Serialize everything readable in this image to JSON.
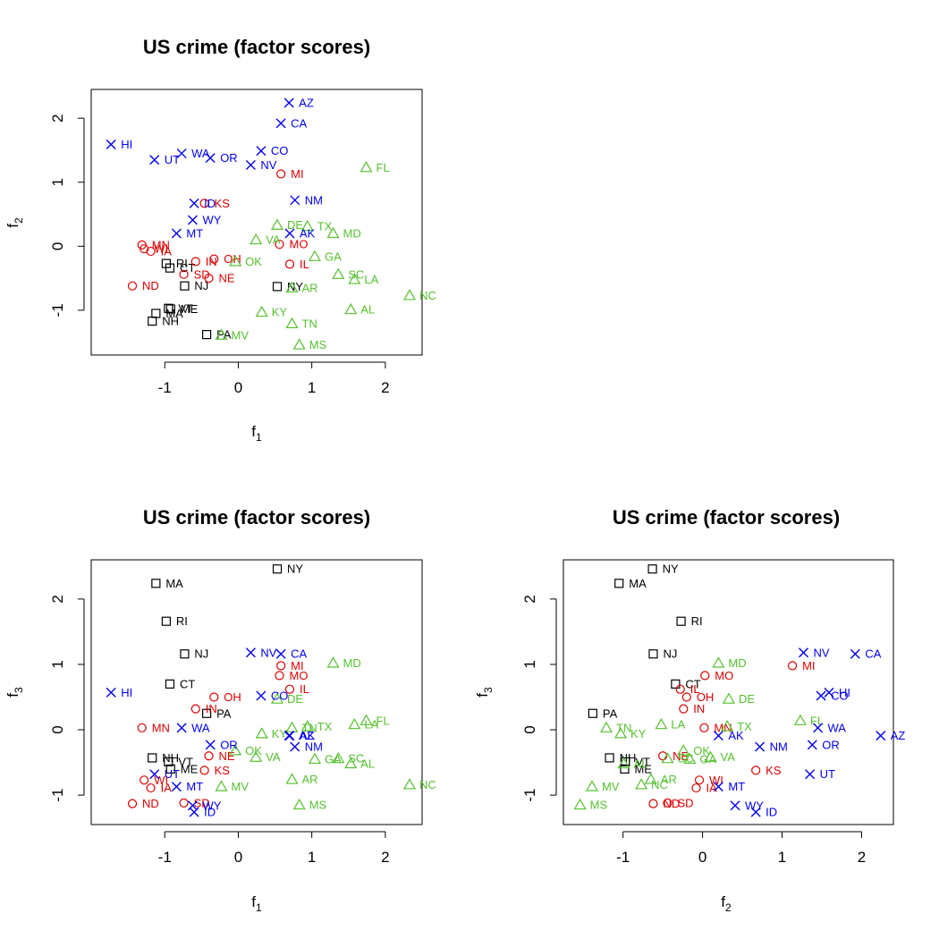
{
  "chart_data": [
    {
      "type": "scatter",
      "title": "US crime (factor scores)",
      "xlabel": "f",
      "xlabel_sub": "1",
      "ylabel": "f",
      "ylabel_sub": "2",
      "xfield": "f1",
      "yfield": "f2",
      "xlim": [
        -2.0,
        2.5
      ],
      "ylim": [
        -1.7,
        2.45
      ],
      "xticks": [
        -1,
        0,
        1,
        2
      ],
      "yticks": [
        -1,
        0,
        1,
        2
      ],
      "grid": false,
      "legend": "none"
    },
    {
      "type": "scatter",
      "title": "US crime (factor scores)",
      "xlabel": "f",
      "xlabel_sub": "1",
      "ylabel": "f",
      "ylabel_sub": "3",
      "xfield": "f1",
      "yfield": "f3",
      "xlim": [
        -2.0,
        2.5
      ],
      "ylim": [
        -1.45,
        2.6
      ],
      "xticks": [
        -1,
        0,
        1,
        2
      ],
      "yticks": [
        -1,
        0,
        1,
        2
      ],
      "grid": false,
      "legend": "none"
    },
    {
      "type": "scatter",
      "title": "US crime (factor scores)",
      "xlabel": "f",
      "xlabel_sub": "2",
      "ylabel": "f",
      "ylabel_sub": "3",
      "xfield": "f2",
      "yfield": "f3",
      "xlim": [
        -1.75,
        2.4
      ],
      "ylim": [
        -1.45,
        2.6
      ],
      "xticks": [
        -1,
        0,
        1,
        2
      ],
      "yticks": [
        -1,
        0,
        1,
        2
      ],
      "grid": false,
      "legend": "none"
    }
  ],
  "groups": [
    {
      "symbol": "square",
      "color": "#000000"
    },
    {
      "symbol": "circle",
      "color": "#dd0000"
    },
    {
      "symbol": "triangle",
      "color": "#55c12e"
    },
    {
      "symbol": "cross",
      "color": "#0000ee"
    }
  ],
  "states": [
    {
      "label": "CT",
      "group": 0,
      "f1": -0.93,
      "f2": -0.34,
      "f3": 0.7
    },
    {
      "label": "MA",
      "group": 0,
      "f1": -1.12,
      "f2": -1.05,
      "f3": 2.24
    },
    {
      "label": "ME",
      "group": 0,
      "f1": -0.92,
      "f2": -0.98,
      "f3": -0.6
    },
    {
      "label": "NH",
      "group": 0,
      "f1": -1.17,
      "f2": -1.17,
      "f3": -0.43
    },
    {
      "label": "NJ",
      "group": 0,
      "f1": -0.73,
      "f2": -0.62,
      "f3": 1.16
    },
    {
      "label": "NY",
      "group": 0,
      "f1": 0.53,
      "f2": -0.63,
      "f3": 2.46
    },
    {
      "label": "PA",
      "group": 0,
      "f1": -0.43,
      "f2": -1.38,
      "f3": 0.25
    },
    {
      "label": "RI",
      "group": 0,
      "f1": -0.98,
      "f2": -0.27,
      "f3": 1.66
    },
    {
      "label": "VT",
      "group": 0,
      "f1": -0.95,
      "f2": -0.97,
      "f3": -0.49
    },
    {
      "label": "IA",
      "group": 1,
      "f1": -1.19,
      "f2": -0.08,
      "f3": -0.89
    },
    {
      "label": "IL",
      "group": 1,
      "f1": 0.7,
      "f2": -0.28,
      "f3": 0.62
    },
    {
      "label": "IN",
      "group": 1,
      "f1": -0.58,
      "f2": -0.24,
      "f3": 0.32
    },
    {
      "label": "KS",
      "group": 1,
      "f1": -0.46,
      "f2": 0.67,
      "f3": -0.62
    },
    {
      "label": "MI",
      "group": 1,
      "f1": 0.58,
      "f2": 1.13,
      "f3": 0.98
    },
    {
      "label": "MN",
      "group": 1,
      "f1": -1.31,
      "f2": 0.02,
      "f3": 0.03
    },
    {
      "label": "MO",
      "group": 1,
      "f1": 0.56,
      "f2": 0.03,
      "f3": 0.83
    },
    {
      "label": "ND",
      "group": 1,
      "f1": -1.44,
      "f2": -0.62,
      "f3": -1.13
    },
    {
      "label": "NE",
      "group": 1,
      "f1": -0.4,
      "f2": -0.5,
      "f3": -0.4
    },
    {
      "label": "OH",
      "group": 1,
      "f1": -0.33,
      "f2": -0.2,
      "f3": 0.5
    },
    {
      "label": "SD",
      "group": 1,
      "f1": -0.74,
      "f2": -0.44,
      "f3": -1.12
    },
    {
      "label": "WI",
      "group": 1,
      "f1": -1.28,
      "f2": -0.04,
      "f3": -0.77
    },
    {
      "label": "AL",
      "group": 2,
      "f1": 1.53,
      "f2": -0.99,
      "f3": -0.52
    },
    {
      "label": "AR",
      "group": 2,
      "f1": 0.73,
      "f2": -0.65,
      "f3": -0.76
    },
    {
      "label": "DE",
      "group": 2,
      "f1": 0.53,
      "f2": 0.33,
      "f3": 0.47
    },
    {
      "label": "FL",
      "group": 2,
      "f1": 1.74,
      "f2": 1.23,
      "f3": 0.14
    },
    {
      "label": "GA",
      "group": 2,
      "f1": 1.04,
      "f2": -0.16,
      "f3": -0.45
    },
    {
      "label": "KY",
      "group": 2,
      "f1": 0.32,
      "f2": -1.03,
      "f3": -0.06
    },
    {
      "label": "LA",
      "group": 2,
      "f1": 1.58,
      "f2": -0.52,
      "f3": 0.08
    },
    {
      "label": "MD",
      "group": 2,
      "f1": 1.29,
      "f2": 0.2,
      "f3": 1.02
    },
    {
      "label": "MS",
      "group": 2,
      "f1": 0.83,
      "f2": -1.54,
      "f3": -1.15
    },
    {
      "label": "MV",
      "group": 2,
      "f1": -0.23,
      "f2": -1.39,
      "f3": -0.87
    },
    {
      "label": "NC",
      "group": 2,
      "f1": 2.33,
      "f2": -0.77,
      "f3": -0.84
    },
    {
      "label": "OK",
      "group": 2,
      "f1": -0.04,
      "f2": -0.24,
      "f3": -0.32
    },
    {
      "label": "SC",
      "group": 2,
      "f1": 1.36,
      "f2": -0.44,
      "f3": -0.44
    },
    {
      "label": "TN",
      "group": 2,
      "f1": 0.73,
      "f2": -1.21,
      "f3": 0.03
    },
    {
      "label": "TX",
      "group": 2,
      "f1": 0.94,
      "f2": 0.31,
      "f3": 0.05
    },
    {
      "label": "VA",
      "group": 2,
      "f1": 0.24,
      "f2": 0.1,
      "f3": -0.42
    },
    {
      "label": "AK",
      "group": 3,
      "f1": 0.7,
      "f2": 0.2,
      "f3": -0.09
    },
    {
      "label": "AZ",
      "group": 3,
      "f1": 0.69,
      "f2": 2.24,
      "f3": -0.09
    },
    {
      "label": "CA",
      "group": 3,
      "f1": 0.58,
      "f2": 1.92,
      "f3": 1.16
    },
    {
      "label": "CO",
      "group": 3,
      "f1": 0.31,
      "f2": 1.49,
      "f3": 0.52
    },
    {
      "label": "HI",
      "group": 3,
      "f1": -1.73,
      "f2": 1.59,
      "f3": 0.57
    },
    {
      "label": "ID",
      "group": 3,
      "f1": -0.6,
      "f2": 0.67,
      "f3": -1.26
    },
    {
      "label": "MT",
      "group": 3,
      "f1": -0.84,
      "f2": 0.2,
      "f3": -0.87
    },
    {
      "label": "NM",
      "group": 3,
      "f1": 0.77,
      "f2": 0.72,
      "f3": -0.26
    },
    {
      "label": "NV",
      "group": 3,
      "f1": 0.17,
      "f2": 1.27,
      "f3": 1.18
    },
    {
      "label": "OR",
      "group": 3,
      "f1": -0.38,
      "f2": 1.38,
      "f3": -0.23
    },
    {
      "label": "UT",
      "group": 3,
      "f1": -1.14,
      "f2": 1.35,
      "f3": -0.68
    },
    {
      "label": "WA",
      "group": 3,
      "f1": -0.77,
      "f2": 1.45,
      "f3": 0.03
    },
    {
      "label": "WY",
      "group": 3,
      "f1": -0.62,
      "f2": 0.41,
      "f3": -1.16
    }
  ]
}
